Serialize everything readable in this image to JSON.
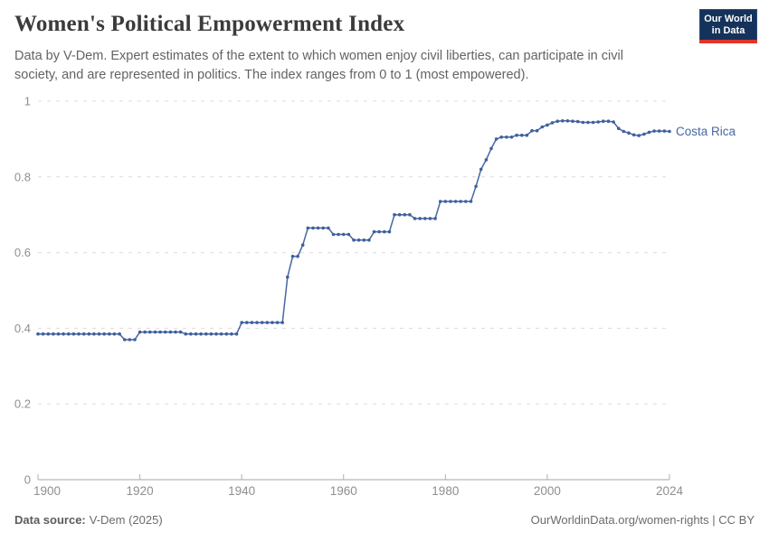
{
  "header": {
    "title": "Women's Political Empowerment Index",
    "subtitle": "Data by V-Dem. Expert estimates of the extent to which women enjoy civil liberties, can participate in civil society, and are represented in politics. The index ranges from 0 to 1 (most empowered).",
    "logo": {
      "line1": "Our World",
      "line2": "in Data",
      "bg_color": "#15325a",
      "accent_color": "#e0352c"
    }
  },
  "chart_data": {
    "type": "line",
    "title": "Women's Political Empowerment Index",
    "xlabel": "",
    "ylabel": "",
    "xlim": [
      1900,
      2024
    ],
    "ylim": [
      0,
      1
    ],
    "grid": "horizontal-dashed",
    "legend_position": "end-of-line-label",
    "x_ticks": [
      1900,
      1920,
      1940,
      1960,
      1980,
      2000,
      2024
    ],
    "y_ticks": [
      0,
      0.2,
      0.4,
      0.6,
      0.8,
      1
    ],
    "y_tick_labels": [
      "0",
      "0.2",
      "0.4",
      "0.6",
      "0.8",
      "1"
    ],
    "x": [
      1900,
      1901,
      1902,
      1903,
      1904,
      1905,
      1906,
      1907,
      1908,
      1909,
      1910,
      1911,
      1912,
      1913,
      1914,
      1915,
      1916,
      1917,
      1918,
      1919,
      1920,
      1921,
      1922,
      1923,
      1924,
      1925,
      1926,
      1927,
      1928,
      1929,
      1930,
      1931,
      1932,
      1933,
      1934,
      1935,
      1936,
      1937,
      1938,
      1939,
      1940,
      1941,
      1942,
      1943,
      1944,
      1945,
      1946,
      1947,
      1948,
      1949,
      1950,
      1951,
      1952,
      1953,
      1954,
      1955,
      1956,
      1957,
      1958,
      1959,
      1960,
      1961,
      1962,
      1963,
      1964,
      1965,
      1966,
      1967,
      1968,
      1969,
      1970,
      1971,
      1972,
      1973,
      1974,
      1975,
      1976,
      1977,
      1978,
      1979,
      1980,
      1981,
      1982,
      1983,
      1984,
      1985,
      1986,
      1987,
      1988,
      1989,
      1990,
      1991,
      1992,
      1993,
      1994,
      1995,
      1996,
      1997,
      1998,
      1999,
      2000,
      2001,
      2002,
      2003,
      2004,
      2005,
      2006,
      2007,
      2008,
      2009,
      2010,
      2011,
      2012,
      2013,
      2014,
      2015,
      2016,
      2017,
      2018,
      2019,
      2020,
      2021,
      2022,
      2023,
      2024
    ],
    "series": [
      {
        "name": "Costa Rica",
        "color": "#4766a4",
        "dot_color": "#3f5f9e",
        "values": [
          0.385,
          0.385,
          0.385,
          0.385,
          0.385,
          0.385,
          0.385,
          0.385,
          0.385,
          0.385,
          0.385,
          0.385,
          0.385,
          0.385,
          0.385,
          0.385,
          0.385,
          0.37,
          0.37,
          0.37,
          0.39,
          0.39,
          0.39,
          0.39,
          0.39,
          0.39,
          0.39,
          0.39,
          0.39,
          0.385,
          0.385,
          0.385,
          0.385,
          0.385,
          0.385,
          0.385,
          0.385,
          0.385,
          0.385,
          0.385,
          0.415,
          0.415,
          0.415,
          0.415,
          0.415,
          0.415,
          0.415,
          0.415,
          0.415,
          0.535,
          0.59,
          0.59,
          0.62,
          0.665,
          0.665,
          0.665,
          0.665,
          0.665,
          0.648,
          0.648,
          0.648,
          0.648,
          0.633,
          0.633,
          0.633,
          0.633,
          0.655,
          0.655,
          0.655,
          0.655,
          0.7,
          0.7,
          0.7,
          0.7,
          0.69,
          0.69,
          0.69,
          0.69,
          0.69,
          0.735,
          0.735,
          0.735,
          0.735,
          0.735,
          0.735,
          0.735,
          0.775,
          0.82,
          0.845,
          0.875,
          0.9,
          0.905,
          0.905,
          0.905,
          0.91,
          0.91,
          0.91,
          0.922,
          0.922,
          0.932,
          0.937,
          0.943,
          0.947,
          0.948,
          0.948,
          0.947,
          0.946,
          0.944,
          0.944,
          0.944,
          0.945,
          0.947,
          0.947,
          0.945,
          0.928,
          0.92,
          0.916,
          0.911,
          0.909,
          0.913,
          0.918,
          0.921,
          0.921,
          0.921,
          0.92
        ]
      }
    ],
    "style": {
      "gridline_color": "#dcdcdc",
      "axis_color": "#a5a5a5",
      "tick_color": "#b0b0b0",
      "tick_label_color": "#8f8f8f"
    }
  },
  "footer": {
    "source_label": "Data source:",
    "source_value": "V-Dem (2025)",
    "attribution": "OurWorldinData.org/women-rights | CC BY"
  }
}
